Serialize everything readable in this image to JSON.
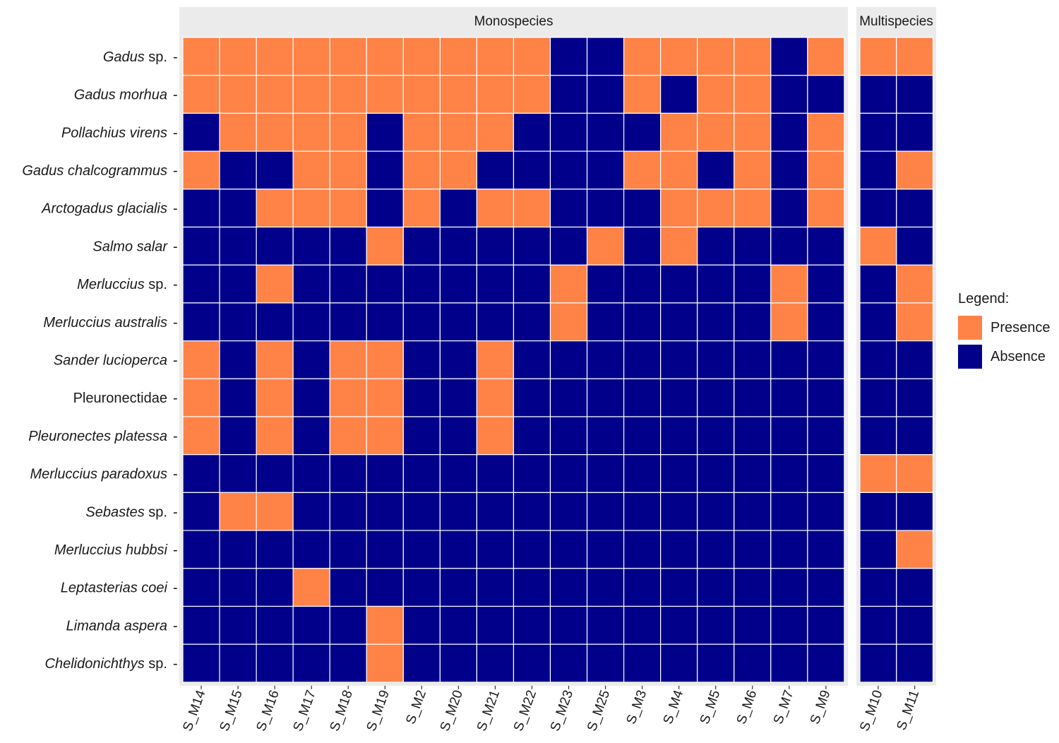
{
  "chart_data": {
    "type": "heatmap",
    "title": "",
    "xlabel": "",
    "ylabel": "",
    "rows": [
      "Gadus sp.",
      "Gadus morhua",
      "Pollachius virens",
      "Gadus chalcogrammus",
      "Arctogadus glacialis",
      "Salmo salar",
      "Merluccius sp.",
      "Merluccius australis",
      "Sander lucioperca",
      "Pleuronectidae",
      "Pleuronectes platessa",
      "Merluccius paradoxus",
      "Sebastes sp.",
      "Merluccius hubbsi",
      "Leptasterias coei",
      "Limanda aspera",
      "Chelidonichthys sp."
    ],
    "row_labels": [
      {
        "italic": "Gadus",
        "plain": " sp."
      },
      {
        "italic": "Gadus morhua",
        "plain": ""
      },
      {
        "italic": "Pollachius virens",
        "plain": ""
      },
      {
        "italic": "Gadus chalcogrammus",
        "plain": ""
      },
      {
        "italic": "Arctogadus glacialis",
        "plain": ""
      },
      {
        "italic": "Salmo salar",
        "plain": ""
      },
      {
        "italic": "Merluccius",
        "plain": " sp."
      },
      {
        "italic": "Merluccius australis",
        "plain": ""
      },
      {
        "italic": "Sander lucioperca",
        "plain": ""
      },
      {
        "italic": "",
        "plain": "Pleuronectidae"
      },
      {
        "italic": "Pleuronectes platessa",
        "plain": ""
      },
      {
        "italic": "Merluccius paradoxus",
        "plain": ""
      },
      {
        "italic": "Sebastes",
        "plain": " sp."
      },
      {
        "italic": "Merluccius hubbsi",
        "plain": ""
      },
      {
        "italic": "Leptasterias coei",
        "plain": ""
      },
      {
        "italic": "Limanda aspera",
        "plain": ""
      },
      {
        "italic": "Chelidonichthys",
        "plain": " sp."
      }
    ],
    "panels": [
      {
        "name": "Monospecies",
        "columns": [
          "S_M14",
          "S_M15",
          "S_M16",
          "S_M17",
          "S_M18",
          "S_M19",
          "S_M2",
          "S_M20",
          "S_M21",
          "S_M22",
          "S_M23",
          "S_M25",
          "S_M3",
          "S_M4",
          "S_M5",
          "S_M6",
          "S_M7",
          "S_M9"
        ],
        "matrix": [
          [
            1,
            1,
            1,
            1,
            1,
            1,
            1,
            1,
            1,
            1,
            0,
            0,
            1,
            1,
            1,
            1,
            0,
            1
          ],
          [
            1,
            1,
            1,
            1,
            1,
            1,
            1,
            1,
            1,
            1,
            0,
            0,
            1,
            0,
            1,
            1,
            0,
            0
          ],
          [
            0,
            1,
            1,
            1,
            1,
            0,
            1,
            1,
            1,
            0,
            0,
            0,
            0,
            1,
            1,
            1,
            0,
            1
          ],
          [
            1,
            0,
            0,
            1,
            1,
            0,
            1,
            1,
            0,
            0,
            0,
            0,
            1,
            1,
            0,
            1,
            0,
            1
          ],
          [
            0,
            0,
            1,
            1,
            1,
            0,
            1,
            0,
            1,
            1,
            0,
            0,
            0,
            1,
            1,
            1,
            0,
            1
          ],
          [
            0,
            0,
            0,
            0,
            0,
            1,
            0,
            0,
            0,
            0,
            0,
            1,
            0,
            1,
            0,
            0,
            0,
            0
          ],
          [
            0,
            0,
            1,
            0,
            0,
            0,
            0,
            0,
            0,
            0,
            1,
            0,
            0,
            0,
            0,
            0,
            1,
            0
          ],
          [
            0,
            0,
            0,
            0,
            0,
            0,
            0,
            0,
            0,
            0,
            1,
            0,
            0,
            0,
            0,
            0,
            1,
            0
          ],
          [
            1,
            0,
            1,
            0,
            1,
            1,
            0,
            0,
            1,
            0,
            0,
            0,
            0,
            0,
            0,
            0,
            0,
            0
          ],
          [
            1,
            0,
            1,
            0,
            1,
            1,
            0,
            0,
            1,
            0,
            0,
            0,
            0,
            0,
            0,
            0,
            0,
            0
          ],
          [
            1,
            0,
            1,
            0,
            1,
            1,
            0,
            0,
            1,
            0,
            0,
            0,
            0,
            0,
            0,
            0,
            0,
            0
          ],
          [
            0,
            0,
            0,
            0,
            0,
            0,
            0,
            0,
            0,
            0,
            0,
            0,
            0,
            0,
            0,
            0,
            0,
            0
          ],
          [
            0,
            1,
            1,
            0,
            0,
            0,
            0,
            0,
            0,
            0,
            0,
            0,
            0,
            0,
            0,
            0,
            0,
            0
          ],
          [
            0,
            0,
            0,
            0,
            0,
            0,
            0,
            0,
            0,
            0,
            0,
            0,
            0,
            0,
            0,
            0,
            0,
            0
          ],
          [
            0,
            0,
            0,
            1,
            0,
            0,
            0,
            0,
            0,
            0,
            0,
            0,
            0,
            0,
            0,
            0,
            0,
            0
          ],
          [
            0,
            0,
            0,
            0,
            0,
            1,
            0,
            0,
            0,
            0,
            0,
            0,
            0,
            0,
            0,
            0,
            0,
            0
          ],
          [
            0,
            0,
            0,
            0,
            0,
            1,
            0,
            0,
            0,
            0,
            0,
            0,
            0,
            0,
            0,
            0,
            0,
            0
          ]
        ]
      },
      {
        "name": "Multispecies",
        "columns": [
          "S_M10",
          "S_M11"
        ],
        "matrix": [
          [
            1,
            1
          ],
          [
            0,
            0
          ],
          [
            0,
            0
          ],
          [
            0,
            1
          ],
          [
            0,
            0
          ],
          [
            1,
            0
          ],
          [
            0,
            1
          ],
          [
            0,
            1
          ],
          [
            0,
            0
          ],
          [
            0,
            0
          ],
          [
            0,
            0
          ],
          [
            1,
            1
          ],
          [
            0,
            0
          ],
          [
            0,
            1
          ],
          [
            0,
            0
          ],
          [
            0,
            0
          ],
          [
            0,
            0
          ]
        ]
      }
    ],
    "value_meaning": {
      "1": "Presence",
      "0": "Absence"
    },
    "legend": {
      "title": "Legend:",
      "position": "right",
      "items": [
        {
          "label": "Presence",
          "value": 1,
          "color": "#ff8247"
        },
        {
          "label": "Absence",
          "value": 0,
          "color": "#00008b"
        }
      ]
    },
    "grid": true
  },
  "colors": {
    "presence": "#ff8247",
    "absence": "#00008b",
    "cell_border": "#ffffff",
    "panel_background": "#ebebeb",
    "strip_background": "#ebebeb",
    "text": "#1a1a1a"
  }
}
